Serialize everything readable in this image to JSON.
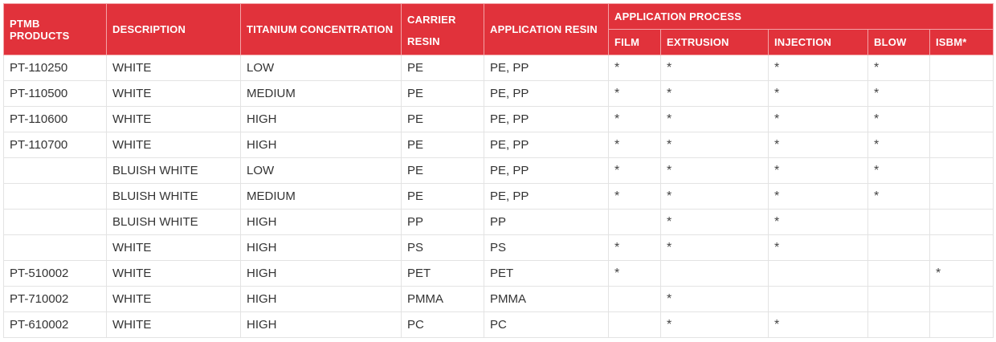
{
  "table": {
    "headers": {
      "products": "PTMB PRODUCTS",
      "description": "DESCRIPTION",
      "titanium": "TITANIUM CONCENTRATION",
      "carrier_line1": "CARRIER",
      "carrier_line2": "RESIN",
      "application_resin": "APPLICATION RESIN",
      "application_process": "APPLICATION PROCESS",
      "process_film": "FILM",
      "process_extrusion": "EXTRUSION",
      "process_injection": "INJECTION",
      "process_blow": "BLOW",
      "process_isbm": "ISBM*"
    },
    "rows": [
      {
        "product": "PT-110250",
        "description": "WHITE",
        "concentration": "LOW",
        "carrier": "PE",
        "app_resin": "PE, PP",
        "film": "*",
        "extrusion": "*",
        "injection": "*",
        "blow": "*",
        "isbm": ""
      },
      {
        "product": "PT-110500",
        "description": "WHITE",
        "concentration": "MEDIUM",
        "carrier": "PE",
        "app_resin": "PE, PP",
        "film": "*",
        "extrusion": "*",
        "injection": "*",
        "blow": "*",
        "isbm": ""
      },
      {
        "product": "PT-110600",
        "description": "WHITE",
        "concentration": "HIGH",
        "carrier": "PE",
        "app_resin": "PE, PP",
        "film": "*",
        "extrusion": "*",
        "injection": "*",
        "blow": "*",
        "isbm": ""
      },
      {
        "product": "PT-110700",
        "description": "WHITE",
        "concentration": "HIGH",
        "carrier": "PE",
        "app_resin": "PE, PP",
        "film": "*",
        "extrusion": "*",
        "injection": "*",
        "blow": "*",
        "isbm": ""
      },
      {
        "product": "",
        "description": "BLUISH WHITE",
        "concentration": "LOW",
        "carrier": "PE",
        "app_resin": "PE, PP",
        "film": "*",
        "extrusion": "*",
        "injection": "*",
        "blow": "*",
        "isbm": ""
      },
      {
        "product": "",
        "description": "BLUISH WHITE",
        "concentration": "MEDIUM",
        "carrier": "PE",
        "app_resin": "PE, PP",
        "film": "*",
        "extrusion": "*",
        "injection": "*",
        "blow": "*",
        "isbm": ""
      },
      {
        "product": "",
        "description": "BLUISH WHITE",
        "concentration": "HIGH",
        "carrier": "PP",
        "app_resin": "PP",
        "film": "",
        "extrusion": "*",
        "injection": "*",
        "blow": "",
        "isbm": ""
      },
      {
        "product": "",
        "description": "WHITE",
        "concentration": "HIGH",
        "carrier": "PS",
        "app_resin": "PS",
        "film": "*",
        "extrusion": "*",
        "injection": "*",
        "blow": "",
        "isbm": ""
      },
      {
        "product": "PT-510002",
        "description": "WHITE",
        "concentration": "HIGH",
        "carrier": "PET",
        "app_resin": "PET",
        "film": "*",
        "extrusion": "",
        "injection": "",
        "blow": "",
        "isbm": "*"
      },
      {
        "product": "PT-710002",
        "description": "WHITE",
        "concentration": "HIGH",
        "carrier": "PMMA",
        "app_resin": "PMMA",
        "film": "",
        "extrusion": "*",
        "injection": "",
        "blow": "",
        "isbm": ""
      },
      {
        "product": "PT-610002",
        "description": "WHITE",
        "concentration": "HIGH",
        "carrier": "PC",
        "app_resin": "PC",
        "film": "",
        "extrusion": "*",
        "injection": "*",
        "blow": "",
        "isbm": ""
      }
    ]
  }
}
